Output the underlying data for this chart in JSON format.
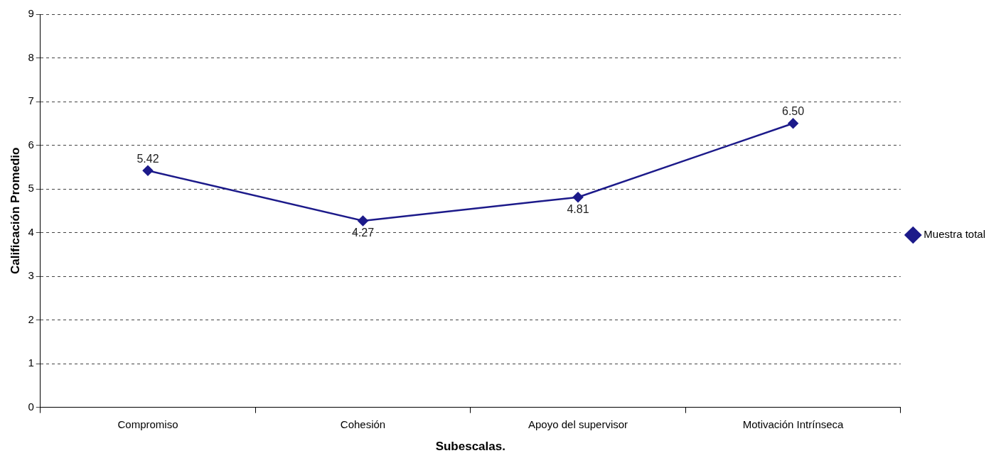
{
  "chart_data": {
    "type": "line",
    "xlabel": "Subescalas.",
    "ylabel": "Calificación Promedio",
    "categories": [
      "Compromiso",
      "Cohesión",
      "Apoyo del supervisor",
      "Motivación Intrínseca"
    ],
    "series": [
      {
        "name": "Muestra total",
        "color": "#1c1a8a",
        "values": [
          5.42,
          4.27,
          4.81,
          6.5
        ],
        "value_labels": [
          "5.42",
          "4.27",
          "4.81",
          "6.50"
        ]
      }
    ],
    "ylim": [
      0,
      9
    ],
    "yticks": [
      0,
      1,
      2,
      3,
      4,
      5,
      6,
      7,
      8,
      9
    ],
    "grid": "y",
    "legend": "right",
    "marker": "diamond",
    "line_style": "solid"
  }
}
